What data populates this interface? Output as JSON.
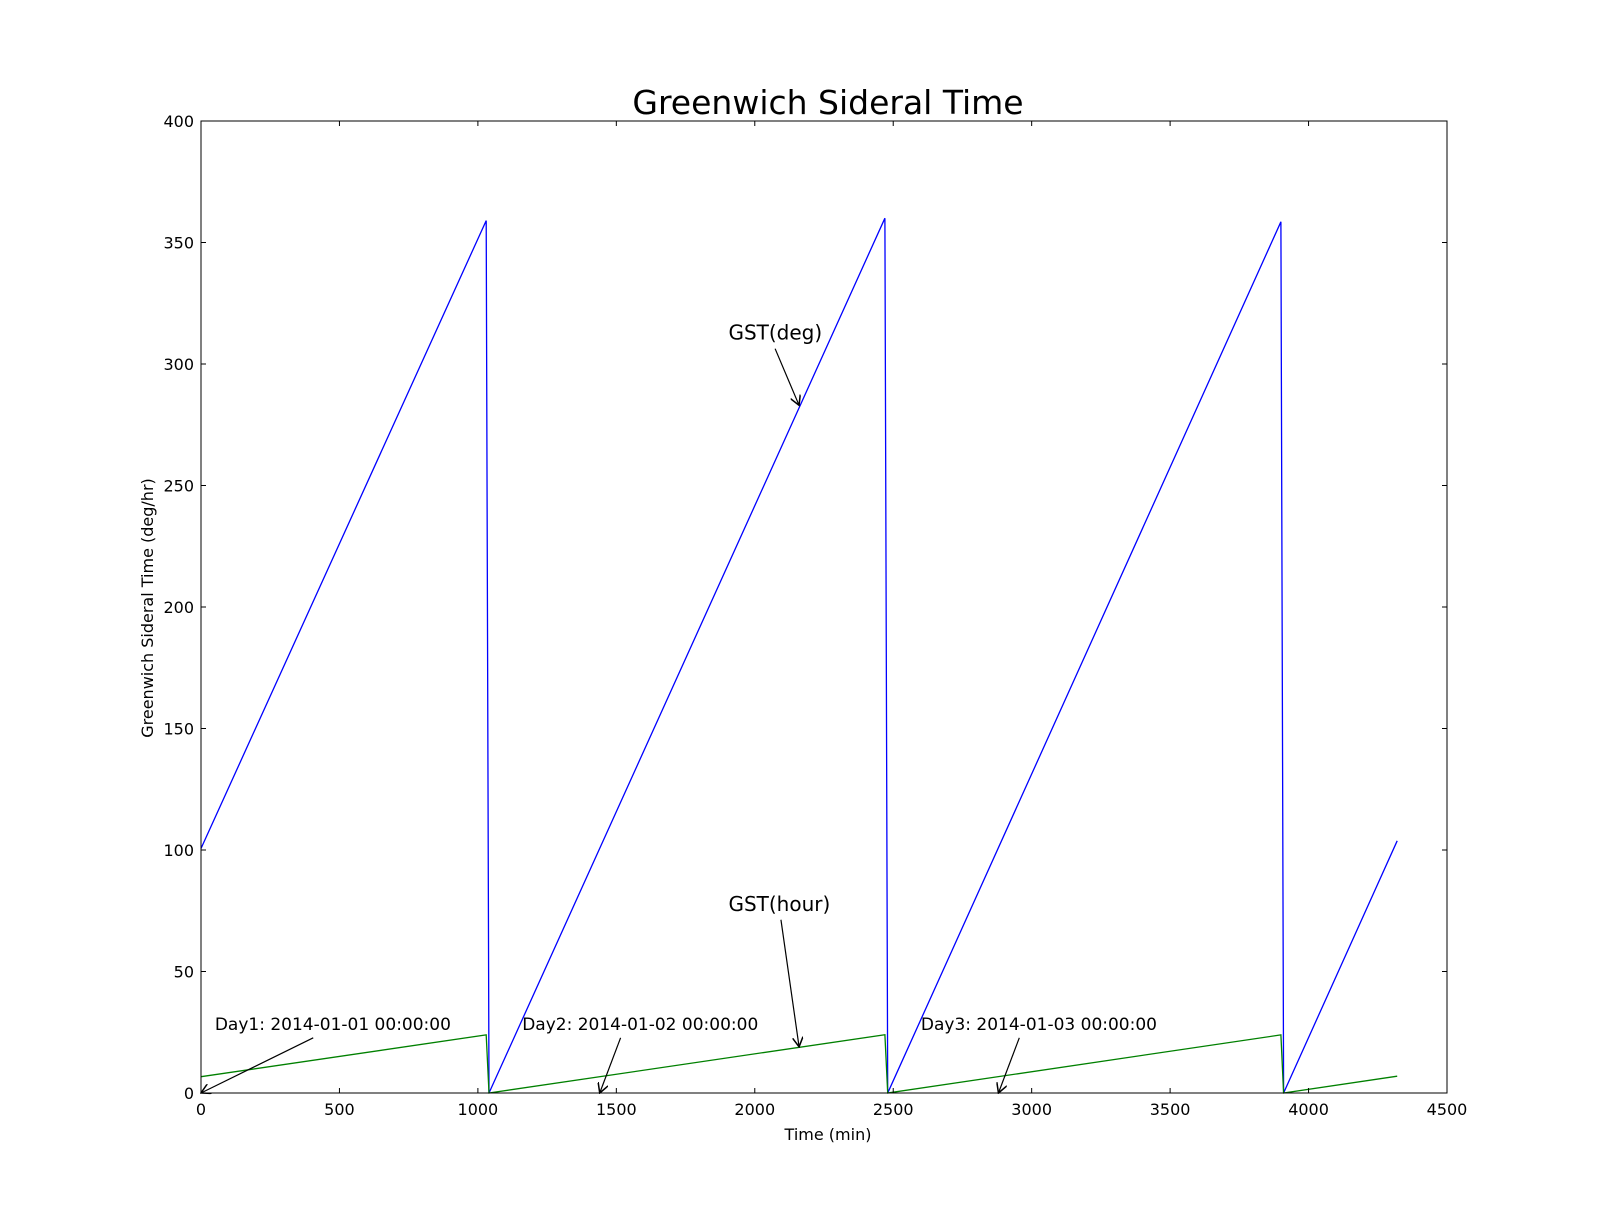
{
  "chart_data": {
    "type": "line",
    "title": "Greenwich Sideral Time",
    "xlabel": "Time (min)",
    "ylabel": "Greenwich Sideral Time (deg/hr)",
    "xlim": [
      0,
      4500
    ],
    "ylim": [
      0,
      400
    ],
    "xticks": [
      0,
      500,
      1000,
      1500,
      2000,
      2500,
      3000,
      3500,
      4000,
      4500
    ],
    "yticks": [
      0,
      50,
      100,
      150,
      200,
      250,
      300,
      350,
      400
    ],
    "grid": false,
    "series": [
      {
        "name": "GST(deg)",
        "color": "#0000ff",
        "x": [
          0,
          1030,
          1040,
          2470,
          2480,
          3900,
          3910,
          4320
        ],
        "y": [
          100.6,
          359,
          0,
          360,
          0,
          358.5,
          0,
          103.8
        ]
      },
      {
        "name": "GST(hour)",
        "color": "#008000",
        "x": [
          0,
          1030,
          1040,
          2470,
          2480,
          3900,
          3910,
          4320
        ],
        "y": [
          6.7,
          23.9,
          0,
          24,
          0,
          23.9,
          0,
          6.9
        ]
      }
    ],
    "annotations": [
      {
        "text": "GST(deg)",
        "point": [
          2160,
          283
        ],
        "text_pos": [
          1905,
          310
        ],
        "size": "large"
      },
      {
        "text": "GST(hour)",
        "point": [
          2160,
          19
        ],
        "text_pos": [
          1905,
          75
        ],
        "size": "large"
      },
      {
        "text": "Day1: 2014-01-01 00:00:00",
        "point": [
          0,
          0
        ],
        "text_pos": [
          50,
          26
        ],
        "size": "normal"
      },
      {
        "text": "Day2: 2014-01-02 00:00:00",
        "point": [
          1440,
          0
        ],
        "text_pos": [
          1160,
          26
        ],
        "size": "normal"
      },
      {
        "text": "Day3: 2014-01-03 00:00:00",
        "point": [
          2880,
          0
        ],
        "text_pos": [
          2600,
          26
        ],
        "size": "normal"
      }
    ]
  }
}
